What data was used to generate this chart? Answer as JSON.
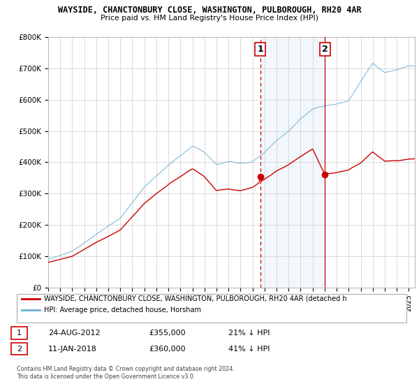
{
  "title": "WAYSIDE, CHANCTONBURY CLOSE, WASHINGTON, PULBOROUGH, RH20 4AR",
  "subtitle": "Price paid vs. HM Land Registry's House Price Index (HPI)",
  "legend_label_red": "WAYSIDE, CHANCTONBURY CLOSE, WASHINGTON, PULBOROUGH, RH20 4AR (detached h",
  "legend_label_blue": "HPI: Average price, detached house, Horsham",
  "footer1": "Contains HM Land Registry data © Crown copyright and database right 2024.",
  "footer2": "This data is licensed under the Open Government Licence v3.0.",
  "annotation1_label": "1",
  "annotation1_date": "24-AUG-2012",
  "annotation1_price": "£355,000",
  "annotation1_hpi": "21% ↓ HPI",
  "annotation2_label": "2",
  "annotation2_date": "11-JAN-2018",
  "annotation2_price": "£360,000",
  "annotation2_hpi": "41% ↓ HPI",
  "sale1_x": 2012.65,
  "sale1_y": 355000,
  "sale2_x": 2018.03,
  "sale2_y": 360000,
  "hpi_color": "#6baed6",
  "hpi_fill_color": "#ddeeff",
  "price_color": "#cc0000",
  "annotation_color": "#cc0000",
  "ylim": [
    0,
    800000
  ],
  "xlim": [
    1995,
    2025.5
  ],
  "background_color": "#ffffff",
  "plot_bg_color": "#ffffff"
}
